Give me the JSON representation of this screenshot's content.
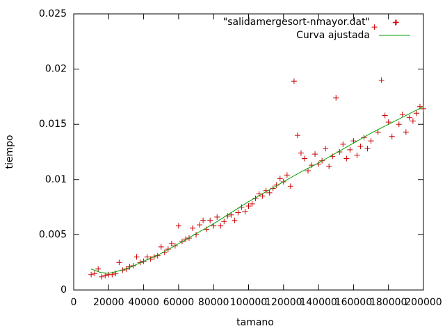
{
  "chart_data": {
    "type": "scatter",
    "xlabel": "tamano",
    "ylabel": "tiempo",
    "xlim": [
      0,
      200000
    ],
    "ylim": [
      0,
      0.025
    ],
    "xticks": [
      0,
      20000,
      40000,
      60000,
      80000,
      100000,
      120000,
      140000,
      160000,
      180000,
      200000
    ],
    "yticks": [
      0,
      0.005,
      0.01,
      0.015,
      0.02,
      0.025
    ],
    "legend": "top-right",
    "series": [
      {
        "name": "\"salidamergesort-nmayor.dat\"",
        "color": "#cc0000",
        "style": "points",
        "x": [
          10000,
          12000,
          14000,
          16000,
          18000,
          20000,
          22000,
          24000,
          26000,
          28000,
          30000,
          32000,
          34000,
          36000,
          38000,
          40000,
          42000,
          44000,
          46000,
          48000,
          50000,
          52000,
          54000,
          56000,
          58000,
          60000,
          62000,
          64000,
          66000,
          68000,
          70000,
          72000,
          74000,
          76000,
          78000,
          80000,
          82000,
          84000,
          86000,
          88000,
          90000,
          92000,
          94000,
          96000,
          98000,
          100000,
          102000,
          104000,
          106000,
          108000,
          110000,
          112000,
          114000,
          116000,
          118000,
          120000,
          122000,
          124000,
          126000,
          128000,
          130000,
          132000,
          134000,
          136000,
          138000,
          140000,
          142000,
          144000,
          146000,
          148000,
          150000,
          152000,
          154000,
          156000,
          158000,
          160000,
          162000,
          164000,
          166000,
          168000,
          170000,
          172000,
          174000,
          176000,
          178000,
          180000,
          182000,
          184000,
          186000,
          188000,
          190000,
          192000,
          194000,
          196000,
          198000,
          200000
        ],
        "values": [
          0.0014,
          0.0015,
          0.0019,
          0.0012,
          0.0013,
          0.0014,
          0.0014,
          0.0015,
          0.0025,
          0.0018,
          0.0019,
          0.0021,
          0.0022,
          0.003,
          0.0025,
          0.0026,
          0.003,
          0.0028,
          0.003,
          0.0031,
          0.0039,
          0.0034,
          0.0037,
          0.0042,
          0.004,
          0.0058,
          0.0044,
          0.0046,
          0.0047,
          0.0056,
          0.005,
          0.0059,
          0.0063,
          0.0055,
          0.0063,
          0.0058,
          0.0066,
          0.0058,
          0.0062,
          0.0067,
          0.0068,
          0.0063,
          0.007,
          0.0075,
          0.0071,
          0.0076,
          0.0078,
          0.0083,
          0.0087,
          0.0085,
          0.009,
          0.0088,
          0.0092,
          0.0095,
          0.0101,
          0.0098,
          0.0104,
          0.0094,
          0.0189,
          0.014,
          0.0124,
          0.0119,
          0.0108,
          0.0113,
          0.0123,
          0.0114,
          0.0117,
          0.0128,
          0.0112,
          0.0121,
          0.0174,
          0.0125,
          0.0132,
          0.0119,
          0.0127,
          0.0135,
          0.0122,
          0.013,
          0.0138,
          0.0128,
          0.0135,
          0.0238,
          0.0143,
          0.019,
          0.0158,
          0.0152,
          0.0139,
          0.0242,
          0.015,
          0.0159,
          0.0143,
          0.0156,
          0.0153,
          0.016,
          0.0166,
          0.0164
        ]
      },
      {
        "name": "Curva ajustada",
        "color": "#00a000",
        "style": "lines",
        "x": [
          10000,
          15000,
          20000,
          30000,
          40000,
          50000,
          60000,
          70000,
          80000,
          90000,
          100000,
          110000,
          120000,
          130000,
          140000,
          150000,
          160000,
          170000,
          180000,
          190000,
          200000
        ],
        "values": [
          0.0019,
          0.0016,
          0.0015,
          0.0019,
          0.0026,
          0.0033,
          0.0042,
          0.0051,
          0.006,
          0.007,
          0.008,
          0.0089,
          0.0098,
          0.0107,
          0.0115,
          0.0124,
          0.0133,
          0.0142,
          0.015,
          0.0158,
          0.0166
        ]
      }
    ]
  }
}
